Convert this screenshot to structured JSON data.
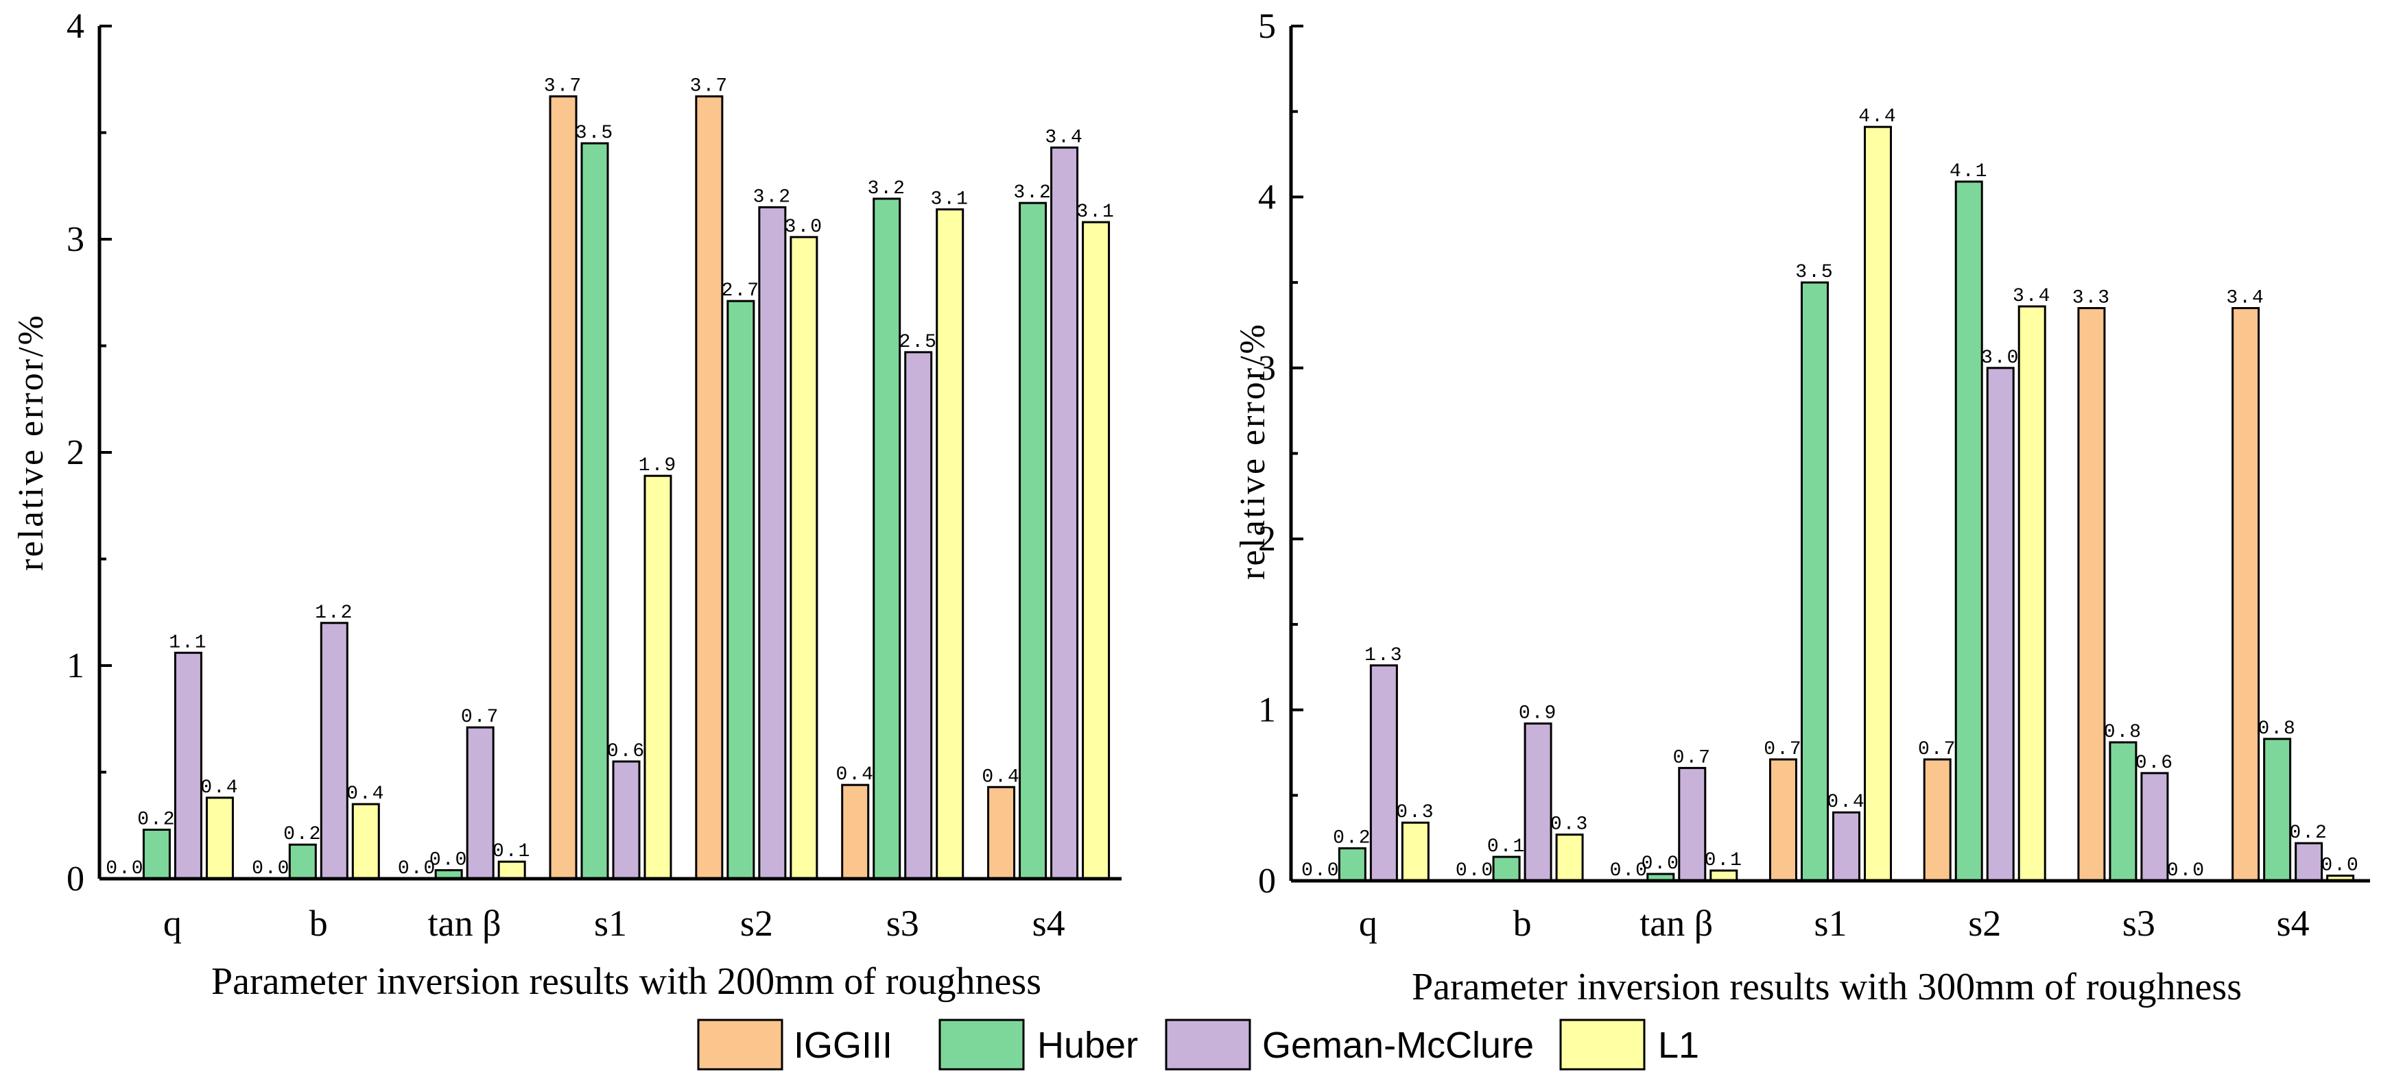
{
  "colors": {
    "IGGIII": "#FBC58E",
    "Huber": "#7ED79A",
    "Geman-McClure": "#C8B2DA",
    "L1": "#FFFFA4"
  },
  "legend": [
    "IGGIII",
    "Huber",
    "Geman-McClure",
    "L1"
  ],
  "chart_data": [
    {
      "type": "bar",
      "categories": [
        "q",
        "b",
        "tan β",
        "s1",
        "s2",
        "s3",
        "s4"
      ],
      "xlabel": "Parameter inversion results with 200mm of roughness",
      "ylabel": "relative error/%",
      "ylim": [
        0,
        4
      ],
      "yticks": [
        "0",
        "1",
        "2",
        "3",
        "4"
      ],
      "series": [
        {
          "name": "IGGIII",
          "values": [
            0.0,
            0.0,
            0.0,
            3.67,
            3.67,
            0.44,
            0.43
          ],
          "labels": [
            "0.0",
            "0.0",
            "0.0",
            "3.7",
            "3.7",
            "0.4",
            "0.4"
          ]
        },
        {
          "name": "Huber",
          "values": [
            0.23,
            0.16,
            0.04,
            3.45,
            2.71,
            3.19,
            3.17
          ],
          "labels": [
            "0.2",
            "0.2",
            "0.0",
            "3.5",
            "2.7",
            "3.2",
            "3.2"
          ]
        },
        {
          "name": "Geman-McClure",
          "values": [
            1.06,
            1.2,
            0.71,
            0.55,
            3.15,
            2.47,
            3.43
          ],
          "labels": [
            "1.1",
            "1.2",
            "0.7",
            "0.6",
            "3.2",
            "2.5",
            "3.4"
          ]
        },
        {
          "name": "L1",
          "values": [
            0.38,
            0.35,
            0.08,
            1.89,
            3.01,
            3.14,
            3.08
          ],
          "labels": [
            "0.4",
            "0.4",
            "0.1",
            "1.9",
            "3.0",
            "3.1",
            "3.1"
          ]
        }
      ]
    },
    {
      "type": "bar",
      "categories": [
        "q",
        "b",
        "tan β",
        "s1",
        "s2",
        "s3",
        "s4"
      ],
      "xlabel": "Parameter inversion results with 300mm of roughness",
      "ylabel": "relative error/%",
      "ylim": [
        0,
        5
      ],
      "yticks": [
        "0",
        "1",
        "2",
        "3",
        "4",
        "5"
      ],
      "series": [
        {
          "name": "IGGIII",
          "values": [
            0.0,
            0.0,
            0.0,
            0.71,
            0.71,
            3.35,
            3.35
          ],
          "labels": [
            "0.0",
            "0.0",
            "0.0",
            "0.7",
            "0.7",
            "3.3",
            "3.4"
          ]
        },
        {
          "name": "Huber",
          "values": [
            0.19,
            0.14,
            0.04,
            3.5,
            4.09,
            0.81,
            0.83
          ],
          "labels": [
            "0.2",
            "0.1",
            "0.0",
            "3.5",
            "4.1",
            "0.8",
            "0.8"
          ]
        },
        {
          "name": "Geman-McClure",
          "values": [
            1.26,
            0.92,
            0.66,
            0.4,
            3.0,
            0.63,
            0.22
          ],
          "labels": [
            "1.3",
            "0.9",
            "0.7",
            "0.4",
            "3.0",
            "0.6",
            "0.2"
          ]
        },
        {
          "name": "L1",
          "values": [
            0.34,
            0.27,
            0.06,
            4.41,
            3.36,
            0.0,
            0.03
          ],
          "labels": [
            "0.3",
            "0.3",
            "0.1",
            "4.4",
            "3.4",
            "0.0",
            "0.0"
          ]
        }
      ]
    }
  ]
}
